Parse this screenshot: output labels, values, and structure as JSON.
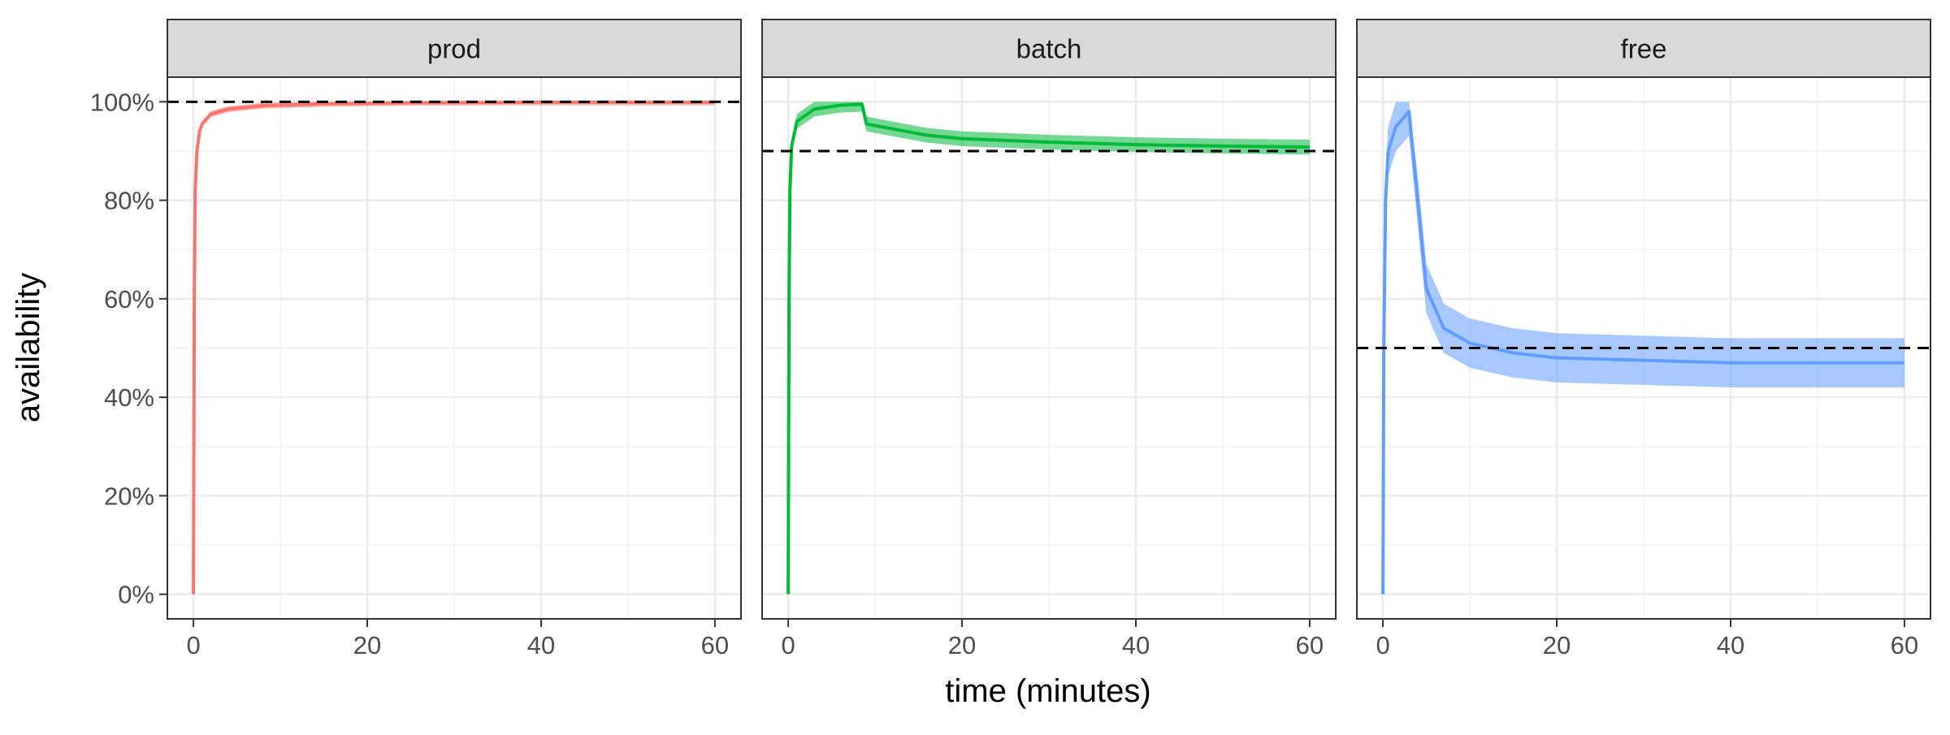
{
  "chart_data": {
    "type": "line",
    "xlabel": "time (minutes)",
    "ylabel": "availability",
    "x_ticks": [
      0,
      20,
      40,
      60
    ],
    "y_ticks": [
      "0%",
      "20%",
      "40%",
      "60%",
      "80%",
      "100%"
    ],
    "y_tick_values": [
      0,
      20,
      40,
      60,
      80,
      100
    ],
    "xlim": [
      -3,
      63
    ],
    "ylim": [
      -5,
      105
    ],
    "grid": true,
    "legend": "none",
    "panels": [
      {
        "name": "prod",
        "color": "#F8766D",
        "target": 100,
        "band": 0.6,
        "series": [
          {
            "x": 0,
            "y": 0
          },
          {
            "x": 0.1,
            "y": 60
          },
          {
            "x": 0.2,
            "y": 82
          },
          {
            "x": 0.4,
            "y": 90
          },
          {
            "x": 0.7,
            "y": 94
          },
          {
            "x": 1,
            "y": 95.5
          },
          {
            "x": 2,
            "y": 97.5
          },
          {
            "x": 4,
            "y": 98.5
          },
          {
            "x": 8,
            "y": 99.2
          },
          {
            "x": 15,
            "y": 99.6
          },
          {
            "x": 25,
            "y": 99.8
          },
          {
            "x": 40,
            "y": 99.9
          },
          {
            "x": 60,
            "y": 99.9
          }
        ]
      },
      {
        "name": "batch",
        "color": "#00BA38",
        "target": 90,
        "band": 1.5,
        "series": [
          {
            "x": 0,
            "y": 0
          },
          {
            "x": 0.1,
            "y": 60
          },
          {
            "x": 0.2,
            "y": 82
          },
          {
            "x": 0.4,
            "y": 91
          },
          {
            "x": 1,
            "y": 96
          },
          {
            "x": 3,
            "y": 98.5
          },
          {
            "x": 6,
            "y": 99.3
          },
          {
            "x": 8.5,
            "y": 99.5
          },
          {
            "x": 9,
            "y": 95.5
          },
          {
            "x": 12,
            "y": 94.5
          },
          {
            "x": 16,
            "y": 93.2
          },
          {
            "x": 20,
            "y": 92.5
          },
          {
            "x": 30,
            "y": 91.8
          },
          {
            "x": 40,
            "y": 91.3
          },
          {
            "x": 50,
            "y": 91
          },
          {
            "x": 60,
            "y": 90.8
          }
        ]
      },
      {
        "name": "free",
        "color": "#619CFF",
        "target": 50,
        "band": 5,
        "series": [
          {
            "x": 0,
            "y": 0
          },
          {
            "x": 0.1,
            "y": 50
          },
          {
            "x": 0.3,
            "y": 80
          },
          {
            "x": 0.6,
            "y": 90
          },
          {
            "x": 1.5,
            "y": 95
          },
          {
            "x": 3,
            "y": 98
          },
          {
            "x": 4,
            "y": 80
          },
          {
            "x": 5,
            "y": 62
          },
          {
            "x": 7,
            "y": 54
          },
          {
            "x": 10,
            "y": 51
          },
          {
            "x": 15,
            "y": 49
          },
          {
            "x": 20,
            "y": 48
          },
          {
            "x": 30,
            "y": 47.5
          },
          {
            "x": 40,
            "y": 47
          },
          {
            "x": 50,
            "y": 47
          },
          {
            "x": 60,
            "y": 47
          }
        ]
      }
    ]
  }
}
